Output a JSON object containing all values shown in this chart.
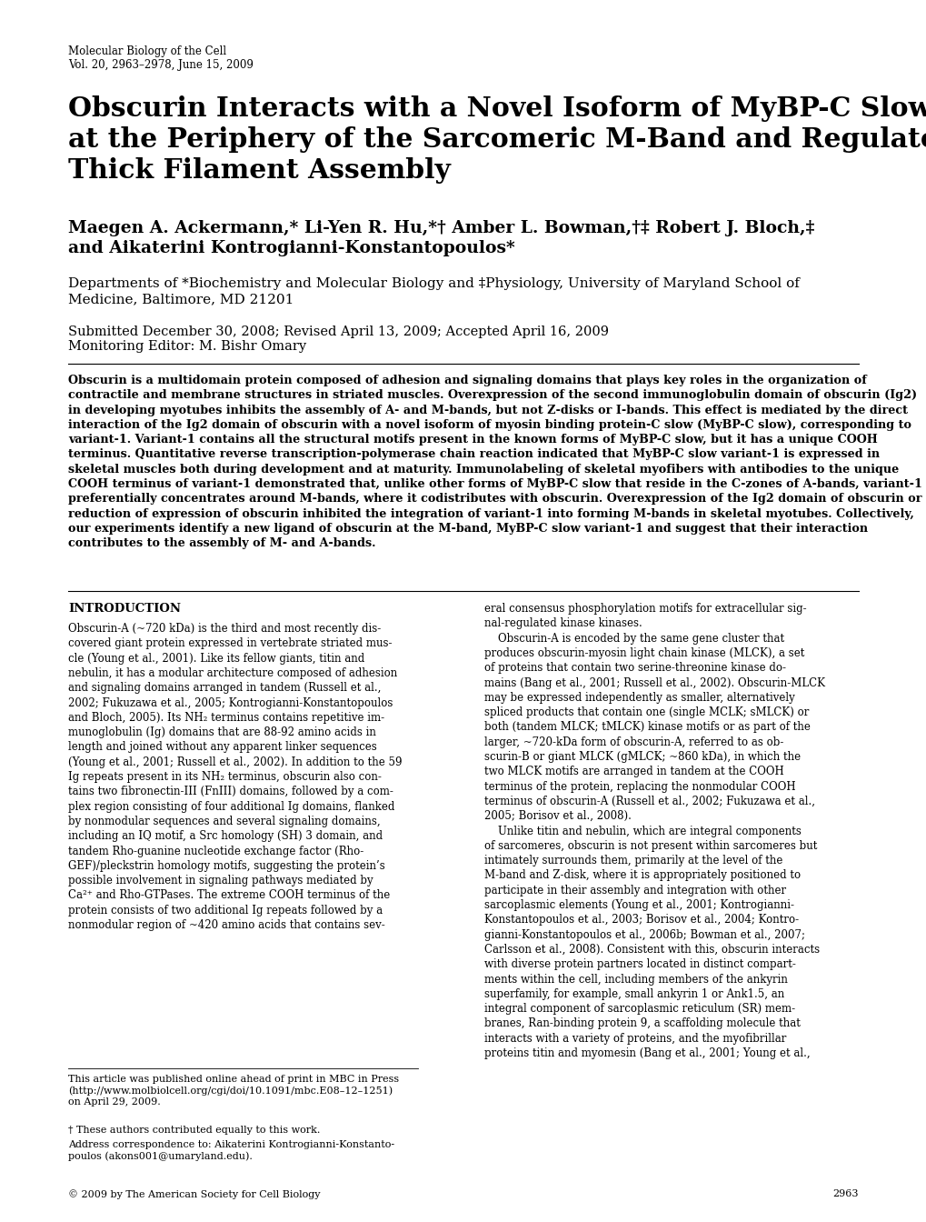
{
  "background_color": "#ffffff",
  "journal_line1": "Molecular Biology of the Cell",
  "journal_line2": "Vol. 20, 2963–2978, June 15, 2009",
  "title": "Obscurin Interacts with a Novel Isoform of MyBP-C Slow\nat the Periphery of the Sarcomeric M-Band and Regulates\nThick Filament Assembly",
  "authors": "Maegen A. Ackermann,* Li-Yen R. Hu,*† Amber L. Bowman,†‡ Robert J. Bloch,‡\nand Aikaterini Kontrogianni-Konstantopoulos*",
  "affiliation": "Departments of *Biochemistry and Molecular Biology and ‡Physiology, University of Maryland School of\nMedicine, Baltimore, MD 21201",
  "dates": "Submitted December 30, 2008; Revised April 13, 2009; Accepted April 16, 2009",
  "editor": "Monitoring Editor: M. Bishr Omary",
  "abstract_bold": "Obscurin is a multidomain protein composed of adhesion and signaling domains that plays key roles in the organization of contractile and membrane structures in striated muscles. Overexpression of the second immunoglobulin domain of obscurin (Ig2) in developing myotubes inhibits the assembly of A- and M-bands, but not Z-disks or I-bands. This effect is mediated by the direct interaction of the Ig2 domain of obscurin with a novel isoform of myosin binding protein-C slow (MyBP-C slow), corresponding to variant-1. Variant-1 contains all the structural motifs present in the known forms of MyBP-C slow, but it has a unique COOH terminus. Quantitative reverse transcription-polymerase chain reaction indicated that MyBP-C slow variant-1 is expressed in skeletal muscles both during development and at maturity. Immunolabeling of skeletal myofibers with antibodies to the unique COOH terminus of variant-1 demonstrated that, unlike other forms of MyBP-C slow that reside in the C-zones of A-bands, variant-1 preferentially concentrates around M-bands, where it codistributes with obscurin. Overexpression of the Ig2 domain of obscurin or reduction of expression of obscurin inhibited the integration of variant-1 into forming M-bands in skeletal myotubes. Collectively, our experiments identify a new ligand of obscurin at the M-band, MyBP-C slow variant-1 and suggest that their interaction contributes to the assembly of M- and A-bands.",
  "intro_heading": "INTRODUCTION",
  "intro_col1": "Obscurin-A (~720 kDa) is the third and most recently dis-\ncovered giant protein expressed in vertebrate striated mus-\ncle (Young et al., 2001). Like its fellow giants, titin and\nnebulin, it has a modular architecture composed of adhesion\nand signaling domains arranged in tandem (Russell et al.,\n2002; Fukuzawa et al., 2005; Kontrogianni-Konstantopoulos\nand Bloch, 2005). Its NH₂ terminus contains repetitive im-\nmunoglobulin (Ig) domains that are 88-92 amino acids in\nlength and joined without any apparent linker sequences\n(Young et al., 2001; Russell et al., 2002). In addition to the 59\nIg repeats present in its NH₂ terminus, obscurin also con-\ntains two fibronectin-III (FnIII) domains, followed by a com-\nplex region consisting of four additional Ig domains, flanked\nby nonmodular sequences and several signaling domains,\nincluding an IQ motif, a Src homology (SH) 3 domain, and\ntandem Rho-guanine nucleotide exchange factor (Rho-\nGEF)/pleckstrin homology motifs, suggesting the protein’s\npossible involvement in signaling pathways mediated by\nCa²⁺ and Rho-GTPases. The extreme COOH terminus of the\nprotein consists of two additional Ig repeats followed by a\nnonmodular region of ~420 amino acids that contains sev-",
  "intro_col2": "eral consensus phosphorylation motifs for extracellular sig-\nnal-regulated kinase kinases.\n    Obscurin-A is encoded by the same gene cluster that\nproduces obscurin-myosin light chain kinase (MLCK), a set\nof proteins that contain two serine-threonine kinase do-\nmains (Bang et al., 2001; Russell et al., 2002). Obscurin-MLCK\nmay be expressed independently as smaller, alternatively\nspliced products that contain one (single MCLK; sMLCK) or\nboth (tandem MLCK; tMLCK) kinase motifs or as part of the\nlarger, ~720-kDa form of obscurin-A, referred to as ob-\nscurin-B or giant MLCK (gMLCK; ~860 kDa), in which the\ntwo MLCK motifs are arranged in tandem at the COOH\nterminus of the protein, replacing the nonmodular COOH\nterminus of obscurin-A (Russell et al., 2002; Fukuzawa et al.,\n2005; Borisov et al., 2008).\n    Unlike titin and nebulin, which are integral components\nof sarcomeres, obscurin is not present within sarcomeres but\nintimately surrounds them, primarily at the level of the\nM-band and Z-disk, where it is appropriately positioned to\nparticipate in their assembly and integration with other\nsarcoplasmic elements (Young et al., 2001; Kontrogianni-\nKonstantopoulos et al., 2003; Borisov et al., 2004; Kontro-\ngianni-Konstantopoulos et al., 2006b; Bowman et al., 2007;\nCarlsson et al., 2008). Consistent with this, obscurin interacts\nwith diverse protein partners located in distinct compart-\nments within the cell, including members of the ankyrin\nsuperfamily, for example, small ankyrin 1 or Ank1.5, an\nintegral component of sarcoplasmic reticulum (SR) mem-\nbranes, Ran-binding protein 9, a scaffolding molecule that\ninteracts with a variety of proteins, and the myofibrillar\nproteins titin and myomesin (Bang et al., 2001; Young et al.,",
  "footnote1": "This article was published online ahead of print in MBC in Press\n(http://www.molbiolcell.org/cgi/doi/10.1091/mbc.E08–12–1251)\non April 29, 2009.",
  "footnote2": "† These authors contributed equally to this work.",
  "footnote3": "Address correspondence to: Aikaterini Kontrogianni-Konstanto-\npoulos (akons001@umaryland.edu).",
  "copyright": "© 2009 by The American Society for Cell Biology",
  "page_number": "2963"
}
